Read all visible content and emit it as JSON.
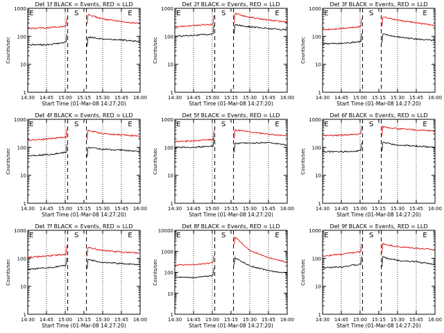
{
  "figure": {
    "title_suffix": "BLACK = Events, RED = LLD",
    "xlabel": "Start Time (01-Mar-08 14:27:20)",
    "ylabel": "Counts/sec",
    "xticks": [
      "14:30",
      "14:45",
      "15:00",
      "15:15",
      "15:30",
      "15:45",
      "16:00"
    ],
    "markers": [
      "E",
      "S",
      "E"
    ]
  },
  "colors": {
    "events": "#000000",
    "lld": "#e00000"
  },
  "chart_data": [
    {
      "type": "line",
      "title": "Det 1f BLACK = Events, RED = LLD",
      "detector": "Det 1f",
      "xlabel": "Start Time (01-Mar-08 14:27:20)",
      "ylabel": "Counts/sec",
      "xlim": [
        "14:30",
        "16:00"
      ],
      "ylim": [
        1,
        1000
      ],
      "yscale": "log",
      "markers": [
        {
          "label": "E",
          "time": "14:33"
        },
        {
          "label": "S",
          "time": "15:09"
        },
        {
          "label": "E",
          "time": "15:52"
        }
      ],
      "gap": [
        "15:02",
        "15:17"
      ],
      "series": [
        {
          "name": "Events",
          "color": "#000000",
          "x": [
            "14:30",
            "14:45",
            "15:00",
            "15:18",
            "15:30",
            "15:45",
            "16:00"
          ],
          "values": [
            50,
            50,
            60,
            95,
            80,
            75,
            65
          ]
        },
        {
          "name": "LLD",
          "color": "#e00000",
          "x": [
            "14:30",
            "14:45",
            "15:00",
            "15:18",
            "15:30",
            "15:45",
            "16:00"
          ],
          "values": [
            190,
            200,
            230,
            600,
            420,
            340,
            280
          ]
        }
      ]
    },
    {
      "type": "line",
      "title": "Det 2f BLACK = Events, RED = LLD",
      "detector": "Det 2f",
      "xlabel": "Start Time (01-Mar-08 14:27:20)",
      "ylabel": "Counts/sec",
      "xlim": [
        "14:30",
        "16:00"
      ],
      "ylim": [
        1,
        1000
      ],
      "yscale": "log",
      "markers": [
        {
          "label": "E",
          "time": "14:33"
        },
        {
          "label": "S",
          "time": "15:09"
        },
        {
          "label": "E",
          "time": "15:52"
        }
      ],
      "gap": [
        "15:02",
        "15:17"
      ],
      "series": [
        {
          "name": "Events",
          "color": "#000000",
          "x": [
            "14:30",
            "14:45",
            "15:00",
            "15:18",
            "15:30",
            "15:45",
            "16:00"
          ],
          "values": [
            100,
            110,
            120,
            260,
            220,
            190,
            170
          ]
        },
        {
          "name": "LLD",
          "color": "#e00000",
          "x": [
            "14:30",
            "14:45",
            "15:00",
            "15:18",
            "15:30",
            "15:45",
            "16:00"
          ],
          "values": [
            220,
            240,
            270,
            650,
            480,
            380,
            320
          ]
        }
      ]
    },
    {
      "type": "line",
      "title": "Det 3f BLACK = Events, RED = LLD",
      "detector": "Det 3f",
      "xlabel": "Start Time (01-Mar-08 14:27:20)",
      "ylabel": "Counts/sec",
      "xlim": [
        "14:30",
        "16:00"
      ],
      "ylim": [
        1,
        1000
      ],
      "yscale": "log",
      "markers": [
        {
          "label": "E",
          "time": "14:33"
        },
        {
          "label": "S",
          "time": "15:09"
        },
        {
          "label": "E",
          "time": "15:52"
        }
      ],
      "gap": [
        "15:02",
        "15:17"
      ],
      "series": [
        {
          "name": "Events",
          "color": "#000000",
          "x": [
            "14:30",
            "14:45",
            "15:00",
            "15:18",
            "15:30",
            "15:45",
            "16:00"
          ],
          "values": [
            55,
            55,
            65,
            120,
            95,
            80,
            70
          ]
        },
        {
          "name": "LLD",
          "color": "#e00000",
          "x": [
            "14:30",
            "14:45",
            "15:00",
            "15:18",
            "15:30",
            "15:45",
            "16:00"
          ],
          "values": [
            170,
            190,
            220,
            500,
            380,
            300,
            250
          ]
        }
      ]
    },
    {
      "type": "line",
      "title": "Det 4f BLACK = Events, RED = LLD",
      "detector": "Det 4f",
      "xlabel": "Start Time (01-Mar-08 14:27:20)",
      "ylabel": "Counts/sec",
      "xlim": [
        "14:30",
        "16:00"
      ],
      "ylim": [
        1,
        1000
      ],
      "yscale": "log",
      "markers": [
        {
          "label": "E",
          "time": "14:33"
        },
        {
          "label": "S",
          "time": "15:09"
        },
        {
          "label": "E",
          "time": "15:52"
        }
      ],
      "gap": [
        "15:02",
        "15:17"
      ],
      "series": [
        {
          "name": "Events",
          "color": "#000000",
          "x": [
            "14:30",
            "14:45",
            "15:00",
            "15:18",
            "15:30",
            "15:45",
            "16:00"
          ],
          "values": [
            50,
            55,
            65,
            100,
            85,
            80,
            70
          ]
        },
        {
          "name": "LLD",
          "color": "#e00000",
          "x": [
            "14:30",
            "14:45",
            "15:00",
            "15:18",
            "15:30",
            "15:45",
            "16:00"
          ],
          "values": [
            180,
            200,
            230,
            400,
            310,
            280,
            250
          ]
        }
      ]
    },
    {
      "type": "line",
      "title": "Det 5f BLACK = Events, RED = LLD",
      "detector": "Det 5f",
      "xlabel": "Start Time (01-Mar-08 14:27:20)",
      "ylabel": "Counts/sec",
      "xlim": [
        "14:30",
        "16:00"
      ],
      "ylim": [
        1,
        1000
      ],
      "yscale": "log",
      "markers": [
        {
          "label": "E",
          "time": "14:33"
        },
        {
          "label": "S",
          "time": "15:09"
        },
        {
          "label": "E",
          "time": "15:52"
        }
      ],
      "gap": [
        "15:02",
        "15:17"
      ],
      "series": [
        {
          "name": "Events",
          "color": "#000000",
          "x": [
            "14:30",
            "14:45",
            "15:00",
            "15:18",
            "15:30",
            "15:45",
            "16:00"
          ],
          "values": [
            100,
            100,
            110,
            140,
            140,
            150,
            120
          ]
        },
        {
          "name": "LLD",
          "color": "#e00000",
          "x": [
            "14:30",
            "14:45",
            "15:00",
            "15:18",
            "15:30",
            "15:45",
            "16:00"
          ],
          "values": [
            160,
            170,
            190,
            420,
            350,
            300,
            250
          ]
        }
      ]
    },
    {
      "type": "line",
      "title": "Det 6f BLACK = Events, RED = LLD",
      "detector": "Det 6f",
      "xlabel": "Start Time (01-Mar-08 14:27:20)",
      "ylabel": "Counts/sec",
      "xlim": [
        "14:30",
        "16:00"
      ],
      "ylim": [
        1,
        1000
      ],
      "yscale": "log",
      "markers": [
        {
          "label": "E",
          "time": "14:33"
        },
        {
          "label": "S",
          "time": "15:09"
        },
        {
          "label": "E",
          "time": "15:52"
        }
      ],
      "gap": [
        "15:02",
        "15:17"
      ],
      "series": [
        {
          "name": "Events",
          "color": "#000000",
          "x": [
            "14:30",
            "14:45",
            "15:00",
            "15:18",
            "15:30",
            "15:45",
            "16:00"
          ],
          "values": [
            70,
            70,
            75,
            150,
            120,
            110,
            100
          ]
        },
        {
          "name": "LLD",
          "color": "#e00000",
          "x": [
            "14:30",
            "14:45",
            "15:00",
            "15:18",
            "15:30",
            "15:45",
            "16:00"
          ],
          "values": [
            260,
            270,
            300,
            550,
            460,
            420,
            380
          ]
        }
      ]
    },
    {
      "type": "line",
      "title": "Det 7f BLACK = Events, RED = LLD",
      "detector": "Det 7f",
      "xlabel": "Start Time (01-Mar-08 14:27:20)",
      "ylabel": "Counts/sec",
      "xlim": [
        "14:30",
        "16:00"
      ],
      "ylim": [
        1,
        1000
      ],
      "yscale": "log",
      "markers": [
        {
          "label": "E",
          "time": "14:33"
        },
        {
          "label": "S",
          "time": "15:09"
        },
        {
          "label": "E",
          "time": "15:52"
        }
      ],
      "gap": [
        "15:02",
        "15:17"
      ],
      "series": [
        {
          "name": "Events",
          "color": "#000000",
          "x": [
            "14:30",
            "14:45",
            "15:00",
            "15:18",
            "15:30",
            "15:45",
            "16:00"
          ],
          "values": [
            40,
            45,
            55,
            90,
            70,
            65,
            60
          ]
        },
        {
          "name": "LLD",
          "color": "#e00000",
          "x": [
            "14:30",
            "14:45",
            "15:00",
            "15:18",
            "15:30",
            "15:45",
            "16:00"
          ],
          "values": [
            110,
            120,
            140,
            250,
            190,
            170,
            150
          ]
        }
      ]
    },
    {
      "type": "line",
      "title": "Det 8f BLACK = Events, RED = LLD",
      "detector": "Det 8f",
      "xlabel": "Start Time (01-Mar-08 14:27:20)",
      "ylabel": "Counts/sec",
      "xlim": [
        "14:30",
        "16:00"
      ],
      "ylim": [
        1,
        10000
      ],
      "yscale": "log",
      "markers": [
        {
          "label": "E",
          "time": "14:33"
        },
        {
          "label": "S",
          "time": "15:09"
        },
        {
          "label": "E",
          "time": "15:52"
        }
      ],
      "gap": [
        "15:02",
        "15:17"
      ],
      "series": [
        {
          "name": "Events",
          "color": "#000000",
          "x": [
            "14:30",
            "14:45",
            "15:00",
            "15:18",
            "15:30",
            "15:45",
            "16:00"
          ],
          "values": [
            60,
            55,
            70,
            500,
            200,
            120,
            90
          ]
        },
        {
          "name": "LLD",
          "color": "#e00000",
          "x": [
            "14:30",
            "14:45",
            "15:00",
            "15:18",
            "15:30",
            "15:45",
            "16:00"
          ],
          "values": [
            220,
            230,
            280,
            5000,
            1100,
            500,
            300
          ]
        }
      ]
    },
    {
      "type": "line",
      "title": "Det 9f BLACK = Events, RED = LLD",
      "detector": "Det 9f",
      "xlabel": "Start Time (01-Mar-08 14:27:20)",
      "ylabel": "Counts/sec",
      "xlim": [
        "14:30",
        "16:00"
      ],
      "ylim": [
        1,
        1000
      ],
      "yscale": "log",
      "markers": [
        {
          "label": "E",
          "time": "14:33"
        },
        {
          "label": "S",
          "time": "15:09"
        },
        {
          "label": "E",
          "time": "15:52"
        }
      ],
      "gap": [
        "15:02",
        "15:17"
      ],
      "series": [
        {
          "name": "Events",
          "color": "#000000",
          "x": [
            "14:30",
            "14:45",
            "15:00",
            "15:18",
            "15:30",
            "15:45",
            "16:00"
          ],
          "values": [
            45,
            50,
            60,
            110,
            85,
            75,
            60
          ]
        },
        {
          "name": "LLD",
          "color": "#e00000",
          "x": [
            "14:30",
            "14:45",
            "15:00",
            "15:18",
            "15:30",
            "15:45",
            "16:00"
          ],
          "values": [
            120,
            140,
            170,
            330,
            260,
            230,
            200
          ]
        }
      ]
    }
  ]
}
